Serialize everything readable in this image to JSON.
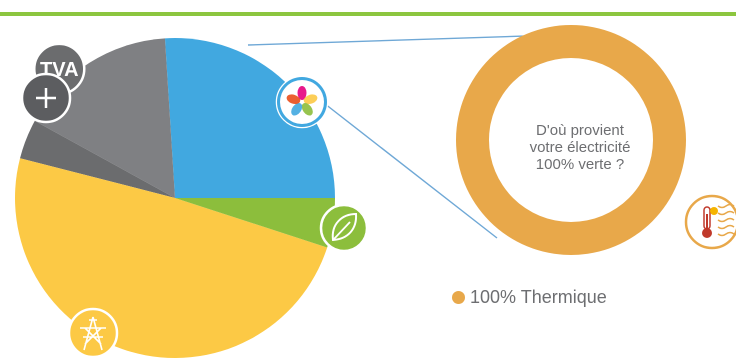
{
  "chart_data": [
    {
      "type": "pie",
      "slices": [
        {
          "name": "",
          "value": 26,
          "color": "#41a8e0",
          "icon": "colorful-star-logo-icon"
        },
        {
          "name": "TVA",
          "value": 16,
          "color": "#7f8083",
          "icon": "tva-badge-icon"
        },
        {
          "name": "",
          "value": 4,
          "color": "#6b6c6e",
          "icon": "plus-icon"
        },
        {
          "name": "",
          "value": 49,
          "color": "#fcc945",
          "icon": "pylon-icon"
        },
        {
          "name": "",
          "value": 5,
          "color": "#8cbe3c",
          "icon": "leaf-icon"
        }
      ]
    },
    {
      "type": "pie",
      "donut": true,
      "slices": [
        {
          "name": "100% Thermique",
          "value": 100,
          "color": "#e8a84a",
          "icon": "thermometer-sun-icon"
        }
      ]
    }
  ],
  "labels": {
    "tva_badge": "TVA",
    "donut_center": [
      "D'où provient",
      "votre électricité",
      "100% verte ?"
    ],
    "legend_item": "100% Thermique"
  },
  "colors": {
    "top_bar": "#8cc63f",
    "connector": "#6fa8d6",
    "text": "#6d6e71"
  }
}
